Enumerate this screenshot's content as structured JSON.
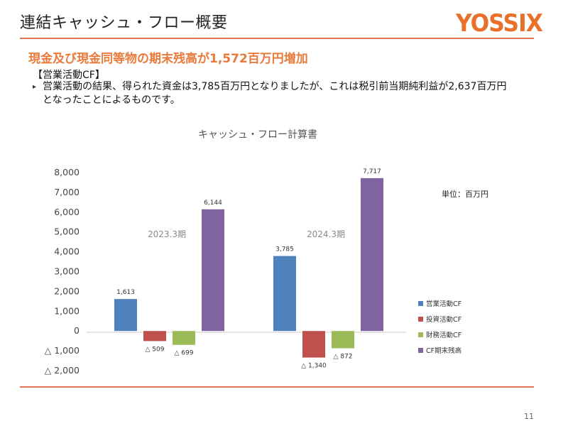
{
  "header": {
    "title": "連結キャッシュ・フロー概要",
    "logo_text": "YOSSIX"
  },
  "content": {
    "headline": "現金及び現金同等物の期末残高が1,572百万円増加",
    "section_label": "【営業活動CF】",
    "bullet_text": "営業活動の結果、得られた資金は3,785百万円となりましたが、これは税引前当期純利益が2,637百万円となったことによるものです。"
  },
  "footer": {
    "page_number": "11"
  },
  "colors": {
    "accent_line": "#e0745a",
    "headline": "#e87a3c",
    "logo": "#e8702a",
    "series": [
      "#4f81bd",
      "#c0504d",
      "#9bbb59",
      "#8064a2"
    ]
  },
  "chart_data": {
    "type": "bar",
    "title": "キャッシュ・フロー計算書",
    "unit_label": "単位：百万円",
    "categories": [
      "2023.3期",
      "2024.3期"
    ],
    "series": [
      {
        "name": "営業活動CF",
        "values": [
          1613,
          3785
        ],
        "labels": [
          "1,613",
          "3,785"
        ]
      },
      {
        "name": "投資活動CF",
        "values": [
          -509,
          -1340
        ],
        "labels": [
          "△ 509",
          "△ 1,340"
        ]
      },
      {
        "name": "財務活動CF",
        "values": [
          -699,
          -872
        ],
        "labels": [
          "△ 699",
          "△ 872"
        ]
      },
      {
        "name": "CF期末残高",
        "values": [
          6144,
          7717
        ],
        "labels": [
          "6,144",
          "7,717"
        ]
      }
    ],
    "ylim": [
      -2000,
      8000
    ],
    "yticks": [
      8000,
      7000,
      6000,
      5000,
      4000,
      3000,
      2000,
      1000,
      0,
      -1000,
      -2000
    ],
    "ytick_labels": [
      "8,000",
      "7,000",
      "6,000",
      "5,000",
      "4,000",
      "3,000",
      "2,000",
      "1,000",
      "0",
      "△ 1,000",
      "△ 2,000"
    ],
    "legend_position": "right",
    "grid": false
  }
}
